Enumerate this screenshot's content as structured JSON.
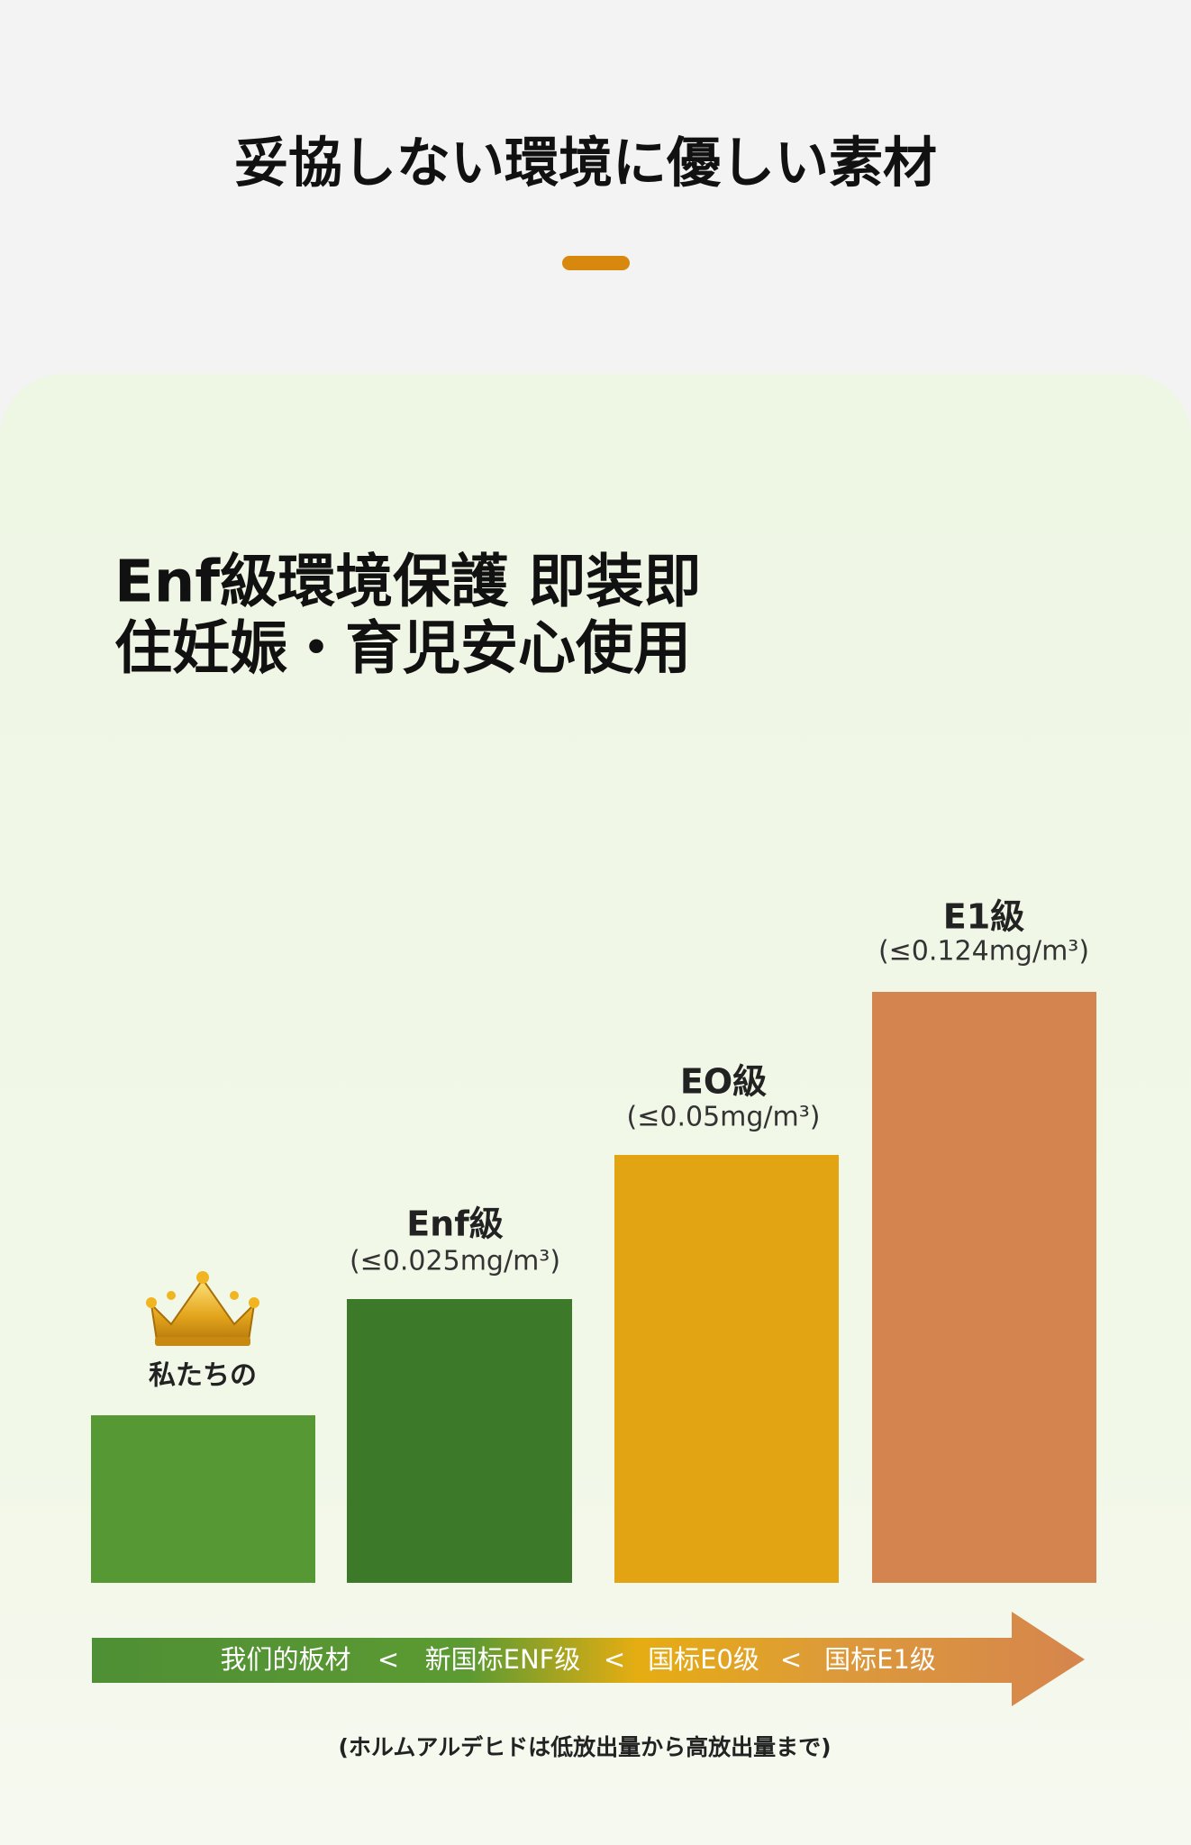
{
  "header": {
    "title": "妥協しない環境に優しい素材"
  },
  "headline": {
    "lines": [
      "Enf級環境保護 即装即",
      "住妊娠・育児安心使用"
    ]
  },
  "bars": [
    {
      "label": "私たちの"
    },
    {
      "label": "Enf級",
      "limit": "(≤0.025mg/m³)"
    },
    {
      "label": "EO級",
      "limit": "(≤0.05mg/m³)"
    },
    {
      "label": "E1級",
      "limit": "(≤0.124mg/m³)"
    }
  ],
  "scale": {
    "items": [
      "我们的板材",
      "<",
      "新国标ENF级",
      "<",
      "国标E0级",
      "<",
      "国标E1级"
    ]
  },
  "footnote": "(ホルムアルデヒドは低放出量から高放出量まで)"
}
